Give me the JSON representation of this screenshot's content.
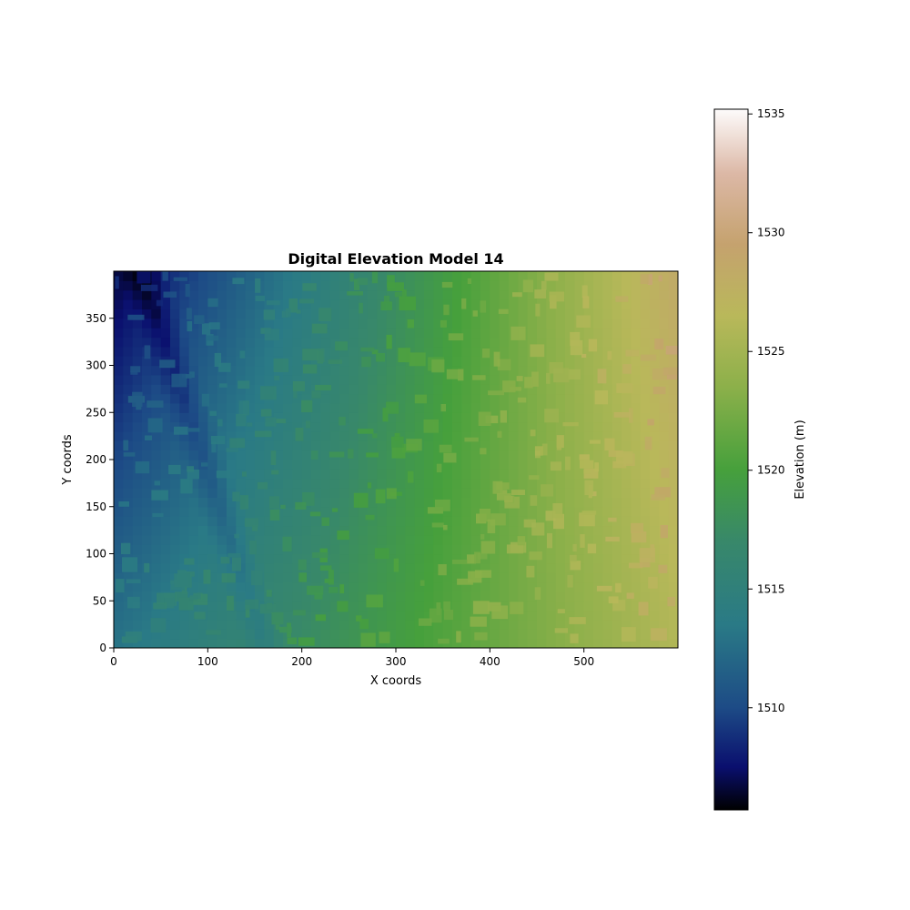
{
  "chart_data": {
    "type": "heatmap",
    "title": "Digital Elevation Model 14",
    "xlabel": "X coords",
    "ylabel": "Y coords",
    "xlim": [
      0,
      600
    ],
    "ylim": [
      0,
      400
    ],
    "x_ticks": [
      0,
      100,
      200,
      300,
      400,
      500
    ],
    "y_ticks": [
      0,
      50,
      100,
      150,
      200,
      250,
      300,
      350
    ],
    "grid": false,
    "colormap": "gist_earth",
    "colorbar": {
      "label": "Elevation (m)",
      "range": [
        1505.7,
        1535.2
      ],
      "ticks": [
        1510,
        1515,
        1520,
        1525,
        1530,
        1535
      ],
      "position": "right"
    },
    "elevation_trend": {
      "min_corner": "top-left",
      "max_corner": "top-right",
      "approx_values": {
        "x0_y400": 1507,
        "x0_y0": 1514,
        "x300_y200": 1517,
        "x400_y200": 1520,
        "x600_y400": 1530,
        "x600_y0": 1526
      }
    },
    "colors": {
      "stops": [
        {
          "value": 1505.7,
          "color": "#000000"
        },
        {
          "value": 1507.5,
          "color": "#0a0f6e"
        },
        {
          "value": 1510.0,
          "color": "#1d4b86"
        },
        {
          "value": 1513.5,
          "color": "#2a7a86"
        },
        {
          "value": 1517.0,
          "color": "#38886a"
        },
        {
          "value": 1520.0,
          "color": "#46a03c"
        },
        {
          "value": 1523.5,
          "color": "#8cb04a"
        },
        {
          "value": 1526.5,
          "color": "#b9b85a"
        },
        {
          "value": 1529.5,
          "color": "#c5a26e"
        },
        {
          "value": 1532.5,
          "color": "#dcb8a6"
        },
        {
          "value": 1535.2,
          "color": "#fdfbfb"
        }
      ]
    }
  }
}
